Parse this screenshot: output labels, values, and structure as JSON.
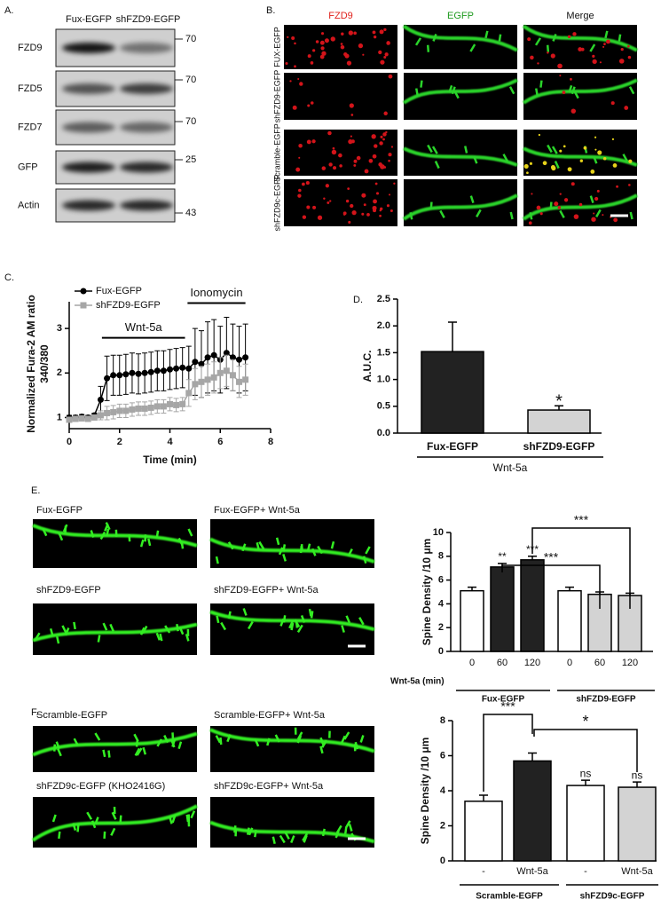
{
  "panel_labels": [
    "A.",
    "B.",
    "C.",
    "D.",
    "E.",
    "F."
  ],
  "blot": {
    "lanes": [
      "Fux-EGFP",
      "shFZD9-EGFP"
    ],
    "rows": [
      {
        "label": "FZD9",
        "mw": "70"
      },
      {
        "label": "FZD5",
        "mw": "70"
      },
      {
        "label": "FZD7",
        "mw": "70"
      },
      {
        "label": "GFP",
        "mw": "25"
      },
      {
        "label": "Actin",
        "mw": "43"
      }
    ]
  },
  "stains": {
    "columns": [
      "FZD9",
      "EGFP",
      "Merge"
    ],
    "rows": [
      "FUX-EGFP",
      "shFZD9-EGFP",
      "Scramble-EGFP",
      "shFZD9c-EGFP"
    ]
  },
  "micrographs": {
    "E": [
      "Fux-EGFP",
      "Fux-EGFP+ Wnt-5a",
      "shFZD9-EGFP",
      "shFZD9-EGFP+ Wnt-5a"
    ],
    "F": [
      "Scramble-EGFP",
      "Scramble-EGFP+ Wnt-5a",
      "shFZD9c-EGFP (KHO2416G)",
      "shFZD9c-EGFP+ Wnt-5a"
    ]
  },
  "chart_data": [
    {
      "type": "line",
      "ylabel": [
        "Normalized Fura-2 AM ratio",
        "340/380"
      ],
      "xlabel": "Time (min)",
      "x": [
        0,
        0.25,
        0.5,
        0.75,
        1,
        1.25,
        1.5,
        1.75,
        2,
        2.25,
        2.5,
        2.75,
        3,
        3.25,
        3.5,
        3.75,
        4,
        4.25,
        4.5,
        4.75,
        5,
        5.25,
        5.5,
        5.75,
        6,
        6.25,
        6.5,
        6.75,
        7
      ],
      "series": [
        {
          "name": "Fux-EGFP",
          "color": "#000000",
          "marker": "circle",
          "values": [
            1.0,
            1.0,
            1.02,
            1.0,
            1.05,
            1.4,
            1.88,
            1.95,
            1.95,
            1.97,
            2.0,
            1.98,
            2.0,
            2.02,
            2.05,
            2.05,
            2.08,
            2.1,
            2.12,
            2.1,
            2.25,
            2.2,
            2.35,
            2.4,
            2.3,
            2.45,
            2.35,
            2.3,
            2.35
          ],
          "errors": [
            0.05,
            0.05,
            0.05,
            0.05,
            0.05,
            0.3,
            0.5,
            0.45,
            0.45,
            0.45,
            0.45,
            0.45,
            0.45,
            0.45,
            0.45,
            0.45,
            0.45,
            0.45,
            0.45,
            0.5,
            0.75,
            0.75,
            0.8,
            0.8,
            0.75,
            0.8,
            0.75,
            0.75,
            0.75
          ]
        },
        {
          "name": "shFZD9-EGFP",
          "color": "#a6a6a6",
          "marker": "square",
          "values": [
            0.95,
            0.97,
            0.98,
            0.97,
            1.0,
            1.05,
            1.1,
            1.12,
            1.15,
            1.15,
            1.18,
            1.2,
            1.2,
            1.22,
            1.25,
            1.25,
            1.3,
            1.28,
            1.3,
            1.55,
            1.75,
            1.8,
            1.85,
            1.9,
            2.0,
            2.05,
            1.95,
            1.8,
            1.85
          ],
          "errors": [
            0.05,
            0.05,
            0.05,
            0.05,
            0.05,
            0.1,
            0.15,
            0.15,
            0.15,
            0.15,
            0.15,
            0.15,
            0.15,
            0.15,
            0.15,
            0.15,
            0.15,
            0.15,
            0.15,
            0.3,
            0.35,
            0.35,
            0.35,
            0.35,
            0.35,
            0.35,
            0.35,
            0.35,
            0.35
          ]
        }
      ],
      "xlim": [
        0,
        8
      ],
      "xticks": [
        0,
        2,
        4,
        6,
        8
      ],
      "ylim": [
        0.75,
        3.6
      ],
      "yticks": [
        1,
        2,
        3
      ],
      "annotations": [
        {
          "text": "Wnt-5a",
          "x": [
            1.3,
            4.6
          ],
          "y": 2.79
        },
        {
          "text": "Ionomycin",
          "x": [
            4.7,
            7.0
          ],
          "y": 3.57
        }
      ]
    },
    {
      "type": "bar",
      "ylabel": "A.U.C.",
      "categories": [
        "Fux-EGFP",
        "shFZD9-EGFP"
      ],
      "groups": [
        "Wnt-5a"
      ],
      "values": [
        1.52,
        0.43
      ],
      "errors": [
        0.55,
        0.08
      ],
      "colors": [
        "#222222",
        "#d3d3d3"
      ],
      "bar_labels": [
        null,
        "*"
      ],
      "ylim": [
        0,
        2.5
      ],
      "yticks": [
        {
          "value": 0,
          "label": "0.0"
        },
        0.5,
        {
          "value": 1,
          "label": "1.0"
        },
        1.5,
        {
          "value": 2,
          "label": "2.0"
        },
        2.5
      ]
    },
    {
      "type": "bar",
      "ylabel": "Spine Density /10 μm",
      "xlabel": "Wnt-5a (min)",
      "categories": [
        "0",
        "60",
        "120",
        "0",
        "60",
        "120"
      ],
      "groups": [
        "Fux-EGFP",
        "shFZD9-EGFP"
      ],
      "values": [
        5.1,
        7.1,
        7.7,
        5.1,
        4.8,
        4.7
      ],
      "errors": [
        0.3,
        0.3,
        0.3,
        0.3,
        0.2,
        0.2
      ],
      "colors": [
        "#ffffff",
        "#222222",
        "#222222",
        "#ffffff",
        "#d3d3d3",
        "#d3d3d3"
      ],
      "bar_labels": [
        null,
        "**",
        "***",
        null,
        null,
        null
      ],
      "brackets": [
        "***",
        "***"
      ],
      "ylim": [
        0,
        10
      ],
      "yticks": [
        0,
        2,
        4,
        6,
        8,
        10
      ]
    },
    {
      "type": "bar",
      "ylabel": "Spine Density /10 μm",
      "categories": [
        "-",
        "Wnt-5a",
        "-",
        "Wnt-5a"
      ],
      "groups": [
        "Scramble-EGFP",
        "shFZD9c-EGFP"
      ],
      "values": [
        3.4,
        5.7,
        4.3,
        4.2
      ],
      "errors": [
        0.35,
        0.45,
        0.3,
        0.3
      ],
      "colors": [
        "#ffffff",
        "#222222",
        "#ffffff",
        "#d3d3d3"
      ],
      "bar_labels": [
        null,
        null,
        "ns",
        "ns"
      ],
      "brackets": [
        "***",
        "*"
      ],
      "ylim": [
        0,
        8
      ],
      "yticks": [
        0,
        2,
        4,
        6,
        8
      ]
    }
  ]
}
